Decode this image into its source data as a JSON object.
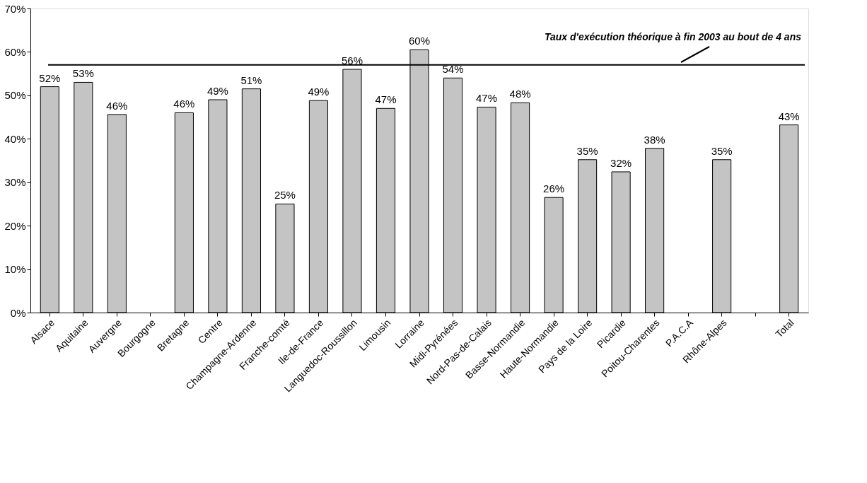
{
  "chart_data": {
    "type": "bar",
    "categories": [
      "Alsace",
      "Aquitaine",
      "Auvergne",
      "Bourgogne",
      "Bretagne",
      "Centre",
      "Champagne-Ardenne",
      "Franche-comté",
      "Ile-de-France",
      "Languedoc-Roussillon",
      "Limousin",
      "Lorraine",
      "Midi-Pyrénées",
      "Nord-Pas-de-Calais",
      "Basse-Normandie",
      "Haute-Normandie",
      "Pays de la Loire",
      "Picardie",
      "Poitou-Charentes",
      "P.A.C.A",
      "Rhône-Alpes",
      null,
      "Total"
    ],
    "values": [
      52,
      53,
      45.6,
      null,
      46,
      49,
      51.5,
      25,
      48.8,
      56,
      47,
      60.5,
      54,
      47.3,
      48.3,
      26.5,
      35.2,
      32.4,
      37.8,
      null,
      35.2,
      null,
      43.2
    ],
    "value_labels": [
      "52%",
      "53%",
      "46%",
      null,
      "46%",
      "49%",
      "51%",
      "25%",
      "49%",
      "56%",
      "47%",
      "60%",
      "54%",
      "47%",
      "48%",
      "26%",
      "35%",
      "32%",
      "38%",
      null,
      "35%",
      null,
      "43%"
    ],
    "color": "#c4c4c4",
    "ylim": [
      0,
      70
    ],
    "yticks": [
      {
        "value": 0,
        "label": "0%"
      },
      {
        "value": 10,
        "label": "10%"
      },
      {
        "value": 20,
        "label": "20%"
      },
      {
        "value": 30,
        "label": "30%"
      },
      {
        "value": 40,
        "label": "40%"
      },
      {
        "value": 50,
        "label": "50%"
      },
      {
        "value": 60,
        "label": "60%"
      },
      {
        "value": 70,
        "label": "70%"
      }
    ],
    "ref_lines": [
      {
        "axis": "y",
        "value": 57,
        "label": "Taux d'exécution théorique à fin 2003 au bout de 4 ans",
        "color": "#000000"
      }
    ],
    "grid": false
  }
}
